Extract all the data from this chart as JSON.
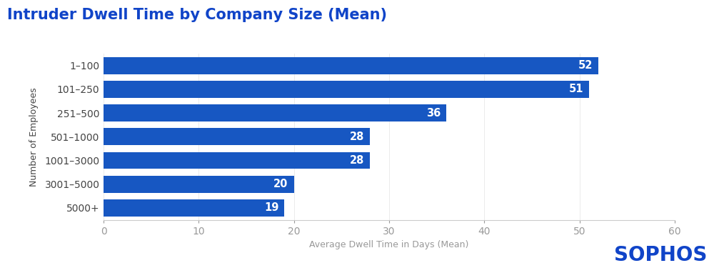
{
  "title": "Intruder Dwell Time by Company Size (Mean)",
  "categories": [
    "1–100",
    "101–250",
    "251–500",
    "501–1000",
    "1001–3000",
    "3001–5000",
    "5000+"
  ],
  "values": [
    52,
    51,
    36,
    28,
    28,
    20,
    19
  ],
  "bar_color": "#1757c2",
  "xlabel": "Average Dwell Time in Days (Mean)",
  "ylabel": "Number of Employees",
  "xlim": [
    0,
    60
  ],
  "xticks": [
    0,
    10,
    20,
    30,
    40,
    50,
    60
  ],
  "title_color": "#1044c8",
  "title_fontsize": 15,
  "label_fontsize": 9,
  "tick_fontsize": 10,
  "axis_label_color": "#999999",
  "ytick_label_color": "#444444",
  "bar_label_color": "#ffffff",
  "bar_label_fontsize": 10.5,
  "background_color": "#ffffff",
  "sophos_text": "SOPHOS",
  "sophos_color": "#1044c8",
  "sophos_fontsize": 20,
  "bar_height": 0.72
}
